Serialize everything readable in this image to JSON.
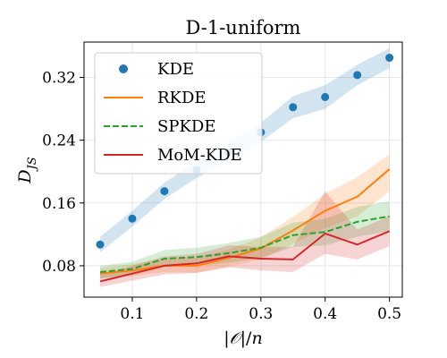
{
  "chart_data": {
    "type": "line",
    "title": "D-1-uniform",
    "xlabel": "|𝒪|/n",
    "ylabel": "D_JS",
    "xlim": [
      0.025,
      0.52
    ],
    "ylim": [
      0.04,
      0.365
    ],
    "xticks": [
      0.1,
      0.2,
      0.3,
      0.4,
      0.5
    ],
    "xtick_labels": [
      "0.1",
      "0.2",
      "0.3",
      "0.4",
      "0.5"
    ],
    "yticks": [
      0.08,
      0.16,
      0.24,
      0.32
    ],
    "ytick_labels": [
      "0.08",
      "0.16",
      "0.24",
      "0.32"
    ],
    "grid": true,
    "legend_position": "top-left",
    "x": [
      0.05,
      0.1,
      0.15,
      0.2,
      0.25,
      0.3,
      0.35,
      0.4,
      0.45,
      0.5
    ],
    "series": [
      {
        "name": "KDE",
        "style": "markers",
        "color": "#1f77b4",
        "band_color": "#1f77b4",
        "values": [
          0.107,
          0.14,
          0.175,
          0.202,
          0.225,
          0.25,
          0.282,
          0.295,
          0.323,
          0.345
        ],
        "lower": [
          0.097,
          0.13,
          0.165,
          0.192,
          0.213,
          0.238,
          0.268,
          0.28,
          0.31,
          0.332
        ],
        "upper": [
          0.117,
          0.15,
          0.186,
          0.212,
          0.237,
          0.262,
          0.296,
          0.31,
          0.336,
          0.357
        ]
      },
      {
        "name": "RKDE",
        "style": "solid",
        "color": "#ff7f0e",
        "band_color": "#ff7f0e",
        "values": [
          0.07,
          0.074,
          0.08,
          0.08,
          0.09,
          0.102,
          0.125,
          0.15,
          0.168,
          0.203
        ],
        "lower": [
          0.064,
          0.067,
          0.072,
          0.071,
          0.079,
          0.088,
          0.108,
          0.128,
          0.143,
          0.175
        ],
        "upper": [
          0.077,
          0.082,
          0.089,
          0.09,
          0.101,
          0.116,
          0.142,
          0.172,
          0.193,
          0.222
        ]
      },
      {
        "name": "SPKDE",
        "style": "dashed",
        "color": "#2ca02c",
        "band_color": "#2ca02c",
        "values": [
          0.072,
          0.076,
          0.089,
          0.091,
          0.096,
          0.103,
          0.119,
          0.123,
          0.136,
          0.143
        ],
        "lower": [
          0.064,
          0.068,
          0.079,
          0.08,
          0.084,
          0.09,
          0.104,
          0.106,
          0.117,
          0.124
        ],
        "upper": [
          0.08,
          0.085,
          0.1,
          0.103,
          0.109,
          0.117,
          0.135,
          0.14,
          0.155,
          0.162
        ]
      },
      {
        "name": "MoM-KDE",
        "style": "solid",
        "color": "#d62728",
        "band_color": "#d62728",
        "values": [
          0.06,
          0.07,
          0.08,
          0.083,
          0.092,
          0.089,
          0.088,
          0.121,
          0.107,
          0.124
        ],
        "lower": [
          0.053,
          0.061,
          0.069,
          0.071,
          0.078,
          0.074,
          0.072,
          0.095,
          0.088,
          0.105
        ],
        "upper": [
          0.068,
          0.08,
          0.092,
          0.095,
          0.106,
          0.104,
          0.104,
          0.175,
          0.126,
          0.143
        ]
      }
    ]
  }
}
